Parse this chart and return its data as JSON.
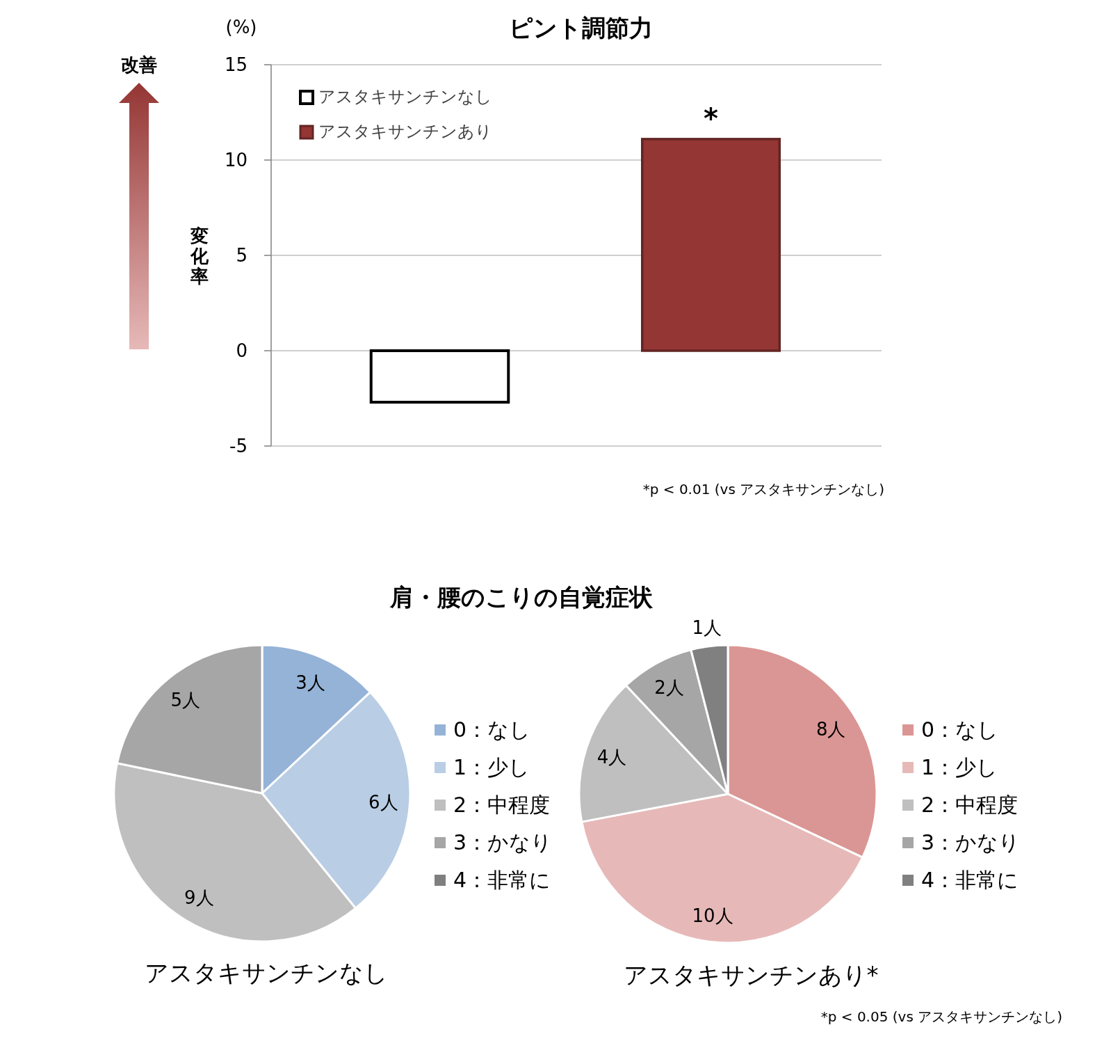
{
  "chart_data": [
    {
      "type": "bar",
      "title": "ピント調節力",
      "ylabel": "変化率",
      "categories": [
        null,
        null
      ],
      "series": [
        {
          "name": "アスタキサンチンなし",
          "color": "#ffffff",
          "values": [
            -2.7,
            null
          ]
        },
        {
          "name": "アスタキサンチンあり",
          "color": "#943634",
          "values": [
            null,
            11.1
          ]
        }
      ],
      "ylim": [
        -5,
        15
      ],
      "yticks": [
        -5,
        0,
        5,
        10,
        15
      ],
      "grid": "y",
      "legend": "top left",
      "annotations": [
        {
          "text": "*",
          "y": 11.1
        },
        "(%)",
        "改善",
        "*p < 0.01 (vs アスタキサンチンなし)"
      ]
    },
    {
      "type": "pie",
      "title": "肩・腰のこりの自覚症状",
      "xlabel": "アスタキサンチンなし",
      "categories": [
        "0：なし",
        "1：少し",
        "2：中程度",
        "3：かなり",
        "4：非常に"
      ],
      "values": [
        3,
        6,
        9,
        5,
        0
      ],
      "colors": [
        "#95b3d7",
        "#b9cde5",
        "#bfbfbf",
        "#a6a6a6",
        "#7f7f7f"
      ],
      "value_labels": [
        "3人",
        "6人",
        "9人",
        "5人",
        null
      ],
      "legend": "right"
    },
    {
      "type": "pie",
      "xlabel": "アスタキサンチンあり*",
      "categories": [
        "0：なし",
        "1：少し",
        "2：中程度",
        "3：かなり",
        "4：非常に"
      ],
      "values": [
        8,
        10,
        4,
        2,
        1
      ],
      "colors": [
        "#da9694",
        "#e6b9b8",
        "#bfbfbf",
        "#a6a6a6",
        "#808080"
      ],
      "value_labels": [
        "8人",
        "10人",
        "4人",
        "2人",
        "1人"
      ],
      "legend": "right",
      "annotations": [
        "*p < 0.05 (vs アスタキサンチンなし)"
      ]
    }
  ]
}
